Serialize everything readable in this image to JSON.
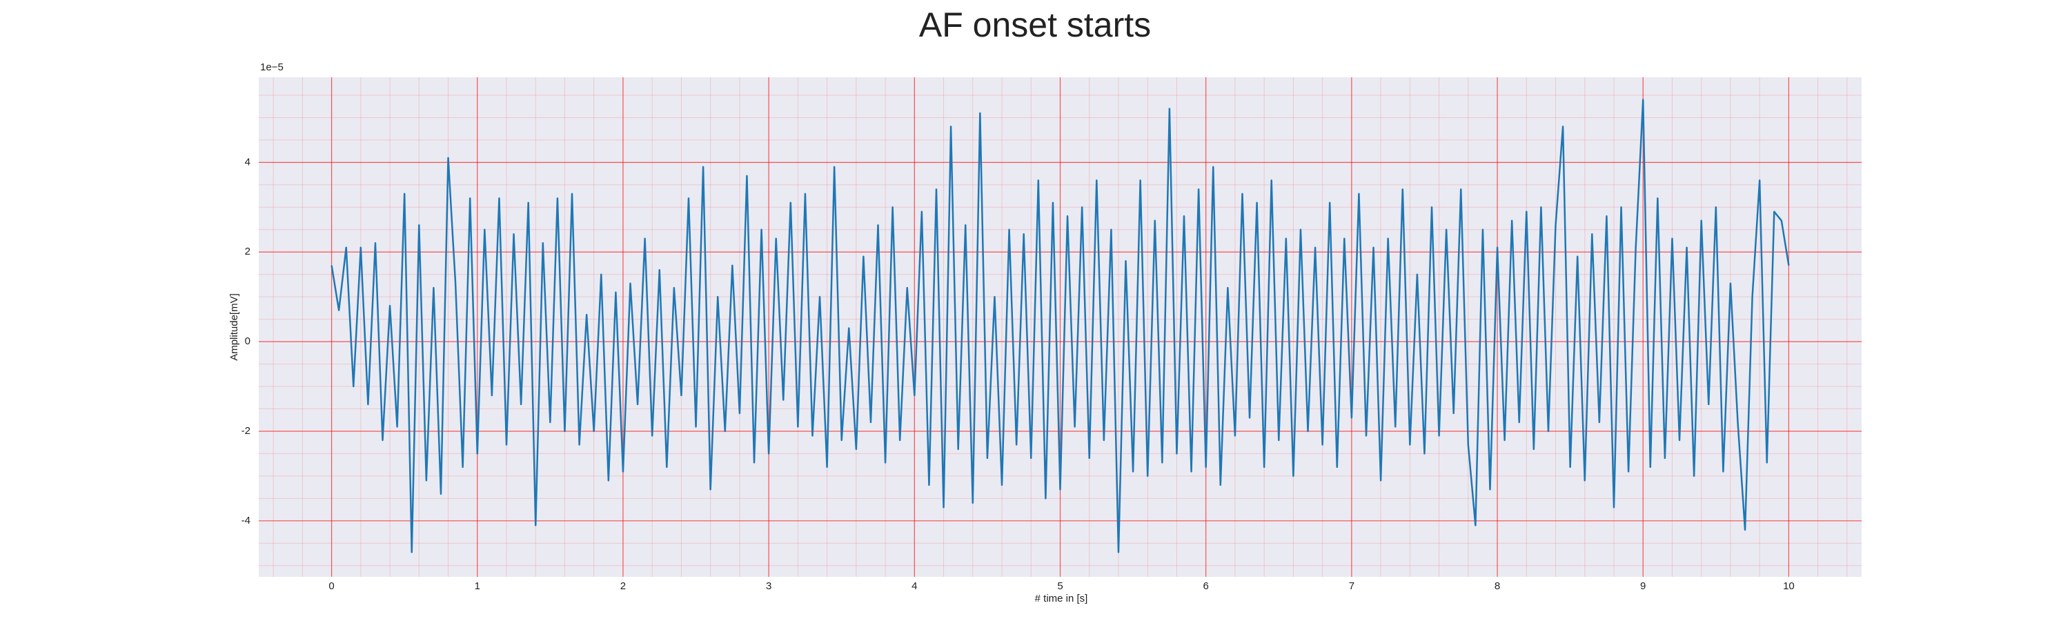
{
  "chart_data": {
    "type": "line",
    "title": "AF onset starts",
    "xlabel": "# time in [s]",
    "ylabel": "Amplitude[mV]",
    "y_offset_label": "1e−5",
    "x": [
      0,
      0.05,
      0.1,
      0.15,
      0.2,
      0.25,
      0.3,
      0.35,
      0.4,
      0.45,
      0.5,
      0.55,
      0.6,
      0.65,
      0.7,
      0.75,
      0.8,
      0.85,
      0.9,
      0.95,
      1,
      1.05,
      1.1,
      1.15,
      1.2,
      1.25,
      1.3,
      1.35,
      1.4,
      1.45,
      1.5,
      1.55,
      1.6,
      1.65,
      1.7,
      1.75,
      1.8,
      1.85,
      1.9,
      1.95,
      2,
      2.05,
      2.1,
      2.15,
      2.2,
      2.25,
      2.3,
      2.35,
      2.4,
      2.45,
      2.5,
      2.55,
      2.6,
      2.65,
      2.7,
      2.75,
      2.8,
      2.85,
      2.9,
      2.95,
      3,
      3.05,
      3.1,
      3.15,
      3.2,
      3.25,
      3.3,
      3.35,
      3.4,
      3.45,
      3.5,
      3.55,
      3.6,
      3.65,
      3.7,
      3.75,
      3.8,
      3.85,
      3.9,
      3.95,
      4,
      4.05,
      4.1,
      4.15,
      4.2,
      4.25,
      4.3,
      4.35,
      4.4,
      4.45,
      4.5,
      4.55,
      4.6,
      4.65,
      4.7,
      4.75,
      4.8,
      4.85,
      4.9,
      4.95,
      5,
      5.05,
      5.1,
      5.15,
      5.2,
      5.25,
      5.3,
      5.35,
      5.4,
      5.45,
      5.5,
      5.55,
      5.6,
      5.65,
      5.7,
      5.75,
      5.8,
      5.85,
      5.9,
      5.95,
      6,
      6.05,
      6.1,
      6.15,
      6.2,
      6.25,
      6.3,
      6.35,
      6.4,
      6.45,
      6.5,
      6.55,
      6.6,
      6.65,
      6.7,
      6.75,
      6.8,
      6.85,
      6.9,
      6.95,
      7,
      7.05,
      7.1,
      7.15,
      7.2,
      7.25,
      7.3,
      7.35,
      7.4,
      7.45,
      7.5,
      7.55,
      7.6,
      7.65,
      7.7,
      7.75,
      7.8,
      7.85,
      7.9,
      7.95,
      8,
      8.05,
      8.1,
      8.15,
      8.2,
      8.25,
      8.3,
      8.35,
      8.4,
      8.45,
      8.5,
      8.55,
      8.6,
      8.65,
      8.7,
      8.75,
      8.8,
      8.85,
      8.9,
      8.95,
      9,
      9.05,
      9.1,
      9.15,
      9.2,
      9.25,
      9.3,
      9.35,
      9.4,
      9.45,
      9.5,
      9.55,
      9.6,
      9.65,
      9.7,
      9.75,
      9.8,
      9.85,
      9.9,
      9.95,
      10
    ],
    "values": [
      1.7,
      0.7,
      2.1,
      -1.0,
      2.1,
      -1.4,
      2.2,
      -2.2,
      0.8,
      -1.9,
      3.3,
      -4.7,
      2.6,
      -3.1,
      1.2,
      -3.4,
      4.1,
      1.3,
      -2.8,
      3.2,
      -2.5,
      2.5,
      -1.2,
      3.2,
      -2.3,
      2.4,
      -1.4,
      3.1,
      -4.1,
      2.2,
      -1.8,
      3.2,
      -2.0,
      3.3,
      -2.3,
      0.6,
      -2.0,
      1.5,
      -3.1,
      1.1,
      -2.9,
      1.3,
      -1.4,
      2.3,
      -2.1,
      1.6,
      -2.8,
      1.2,
      -1.2,
      3.2,
      -1.9,
      3.9,
      -3.3,
      1.0,
      -2.0,
      1.7,
      -1.6,
      3.7,
      -2.7,
      2.5,
      -2.5,
      2.3,
      -1.3,
      3.1,
      -1.9,
      3.3,
      -2.1,
      1.0,
      -2.8,
      3.9,
      -2.2,
      0.3,
      -2.4,
      1.9,
      -1.8,
      2.6,
      -2.7,
      3.0,
      -2.2,
      1.2,
      -1.2,
      2.9,
      -3.2,
      3.4,
      -3.7,
      4.8,
      -2.4,
      2.6,
      -3.6,
      5.1,
      -2.6,
      1.0,
      -3.2,
      2.5,
      -2.3,
      2.4,
      -2.6,
      3.6,
      -3.5,
      3.1,
      -3.3,
      2.8,
      -1.9,
      3.0,
      -2.6,
      3.6,
      -2.2,
      2.5,
      -4.7,
      1.8,
      -2.9,
      3.6,
      -3.0,
      2.7,
      -2.7,
      5.2,
      -2.5,
      2.8,
      -2.9,
      3.4,
      -2.8,
      3.9,
      -3.2,
      1.2,
      -2.1,
      3.3,
      -1.7,
      3.1,
      -2.8,
      3.6,
      -2.2,
      2.3,
      -3.0,
      2.5,
      -2.0,
      2.1,
      -2.3,
      3.1,
      -2.8,
      2.3,
      -1.7,
      3.3,
      -2.1,
      2.1,
      -3.1,
      2.3,
      -1.9,
      3.4,
      -2.3,
      1.5,
      -2.5,
      3.0,
      -2.1,
      2.5,
      -1.6,
      3.4,
      -2.3,
      -4.1,
      2.5,
      -3.3,
      2.1,
      -2.2,
      2.7,
      -1.8,
      2.9,
      -2.4,
      3.0,
      -2.0,
      2.6,
      4.8,
      -2.8,
      1.9,
      -3.1,
      2.4,
      -1.8,
      2.8,
      -3.7,
      3.0,
      -2.9,
      2.1,
      5.4,
      -2.8,
      3.2,
      -2.6,
      2.3,
      -2.2,
      2.1,
      -3.0,
      2.7,
      -1.4,
      3.0,
      -2.9,
      1.3,
      -1.8,
      -4.2,
      1.0,
      3.6,
      -2.7,
      2.9,
      2.7,
      1.7
    ],
    "color": "#1f77b4",
    "xlim": [
      -0.5,
      10.5
    ],
    "xticks": [
      0,
      1,
      2,
      3,
      4,
      5,
      6,
      7,
      8,
      9,
      10
    ],
    "ylim": [
      -5.25,
      5.9
    ],
    "yticks": [
      -4,
      -2,
      0,
      2,
      4
    ],
    "grid": true,
    "grid_color": "#ff0000",
    "minor_grid": true,
    "minor_divisions": [
      5,
      4
    ],
    "background": "#eaeaf2"
  }
}
